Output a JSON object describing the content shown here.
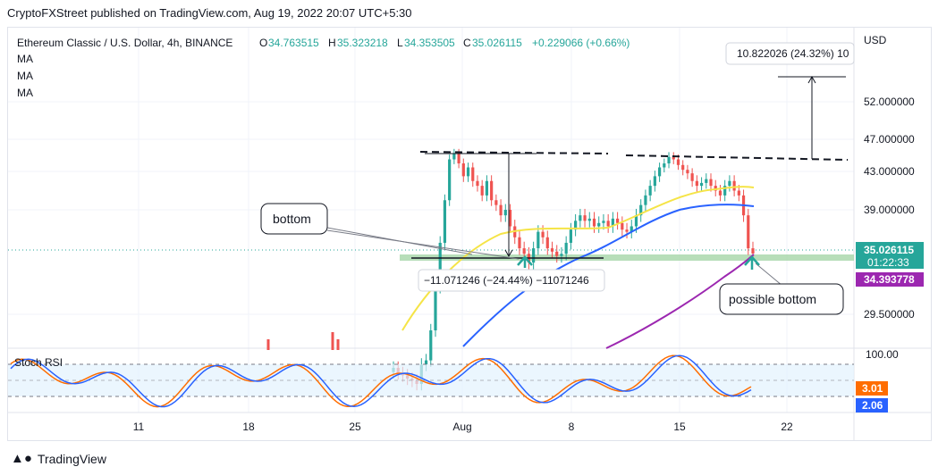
{
  "header": {
    "publish_line": "CryptoFXStreet published on TradingView.com, Aug 19, 2022 20:07 UTC+5:30"
  },
  "legend": {
    "symbol": "Ethereum Classic / U.S. Dollar, 4h, BINANCE",
    "o_label": "O",
    "o": "34.763515",
    "h_label": "H",
    "h": "35.323218",
    "l_label": "L",
    "l": "34.353505",
    "c_label": "C",
    "c": "35.026115",
    "change": "+0.229066 (+0.66%)",
    "ma1": "MA",
    "ma2": "MA",
    "ma3": "MA"
  },
  "axis": {
    "currency": "USD"
  },
  "indicator": {
    "name": "Stoch RSI",
    "k_value": "3.01",
    "d_value": "2.06"
  },
  "price_badges": {
    "last": "35.026115",
    "countdown": "01:22:33",
    "ma_value": "34.393778"
  },
  "annotations": {
    "bottom": "bottom",
    "possible_bottom": "possible bottom",
    "measure_down": "−11.071246 (−24.44%) −11071246",
    "measure_up": "10.822026 (24.32%) 10"
  },
  "footer": {
    "brand": "TradingView"
  },
  "colors": {
    "up": "#26a69a",
    "down": "#ef5350",
    "ma_yellow": "#f5e447",
    "ma_blue": "#2962ff",
    "ma_purple": "#9c27b0",
    "rsi_k": "#2962ff",
    "rsi_d": "#ff6d00",
    "support_zone": "#a5d6a7"
  },
  "chart_data": {
    "type": "candlestick",
    "title": "Ethereum Classic / U.S. Dollar, 4h, BINANCE",
    "y_axis_ticks": [
      "52.000000",
      "47.000000",
      "43.000000",
      "39.000000",
      "29.500000"
    ],
    "x_axis_ticks": [
      "11",
      "18",
      "25",
      "Aug",
      "8",
      "15",
      "22"
    ],
    "rsi_axis_ticks": [
      "100.00"
    ],
    "series": [
      {
        "values": [
          24.5,
          24.0,
          23.8,
          23.5,
          23.3,
          23.0,
          24.8,
          25.2,
          28.0,
          32.0,
          36.0,
          40.0,
          44.5,
          45.2,
          44.0,
          42.5,
          43.5,
          42.0,
          41.5,
          40.5,
          42.0,
          40.0,
          39.5,
          38.5,
          39.0,
          37.5,
          36.5,
          35.5,
          35.0,
          34.2,
          35.5,
          37.0,
          36.5,
          35.5,
          35.2,
          34.8,
          35.0,
          36.0,
          37.2,
          38.0,
          38.5,
          38.0,
          38.2,
          37.5,
          37.8,
          38.0,
          37.5,
          38.2,
          37.8,
          37.2,
          37.0,
          37.5,
          38.5,
          39.5,
          40.5,
          41.5,
          42.5,
          43.5,
          44.0,
          44.8,
          44.5,
          43.8,
          43.2,
          42.8,
          42.0,
          41.5,
          41.8,
          42.2,
          41.5,
          41.0,
          40.5,
          41.5,
          42.0,
          41.0,
          40.5,
          38.5,
          35.5,
          35.026
        ]
      },
      {
        "values": [
          23.0,
          23.5,
          24.5,
          26.0,
          28.0,
          30.0,
          32.0,
          34.0,
          35.5,
          36.5,
          37.3,
          37.8,
          38.2,
          38.5,
          38.8,
          39.2,
          39.6,
          40.0,
          40.4,
          40.8,
          41.2,
          41.5,
          41.2
        ]
      },
      {
        "values": [
          24.0,
          25.5,
          27.5,
          29.5,
          31.5,
          33.0,
          34.5,
          35.5,
          36.2,
          36.7,
          37.2,
          37.8,
          38.3,
          38.8,
          39.3,
          39.7,
          40.0,
          40.1,
          40.0,
          39.7
        ]
      },
      {
        "values": [
          28.0,
          29.0,
          30.0,
          31.0,
          32.0,
          33.0,
          34.0,
          34.39
        ]
      }
    ]
  }
}
